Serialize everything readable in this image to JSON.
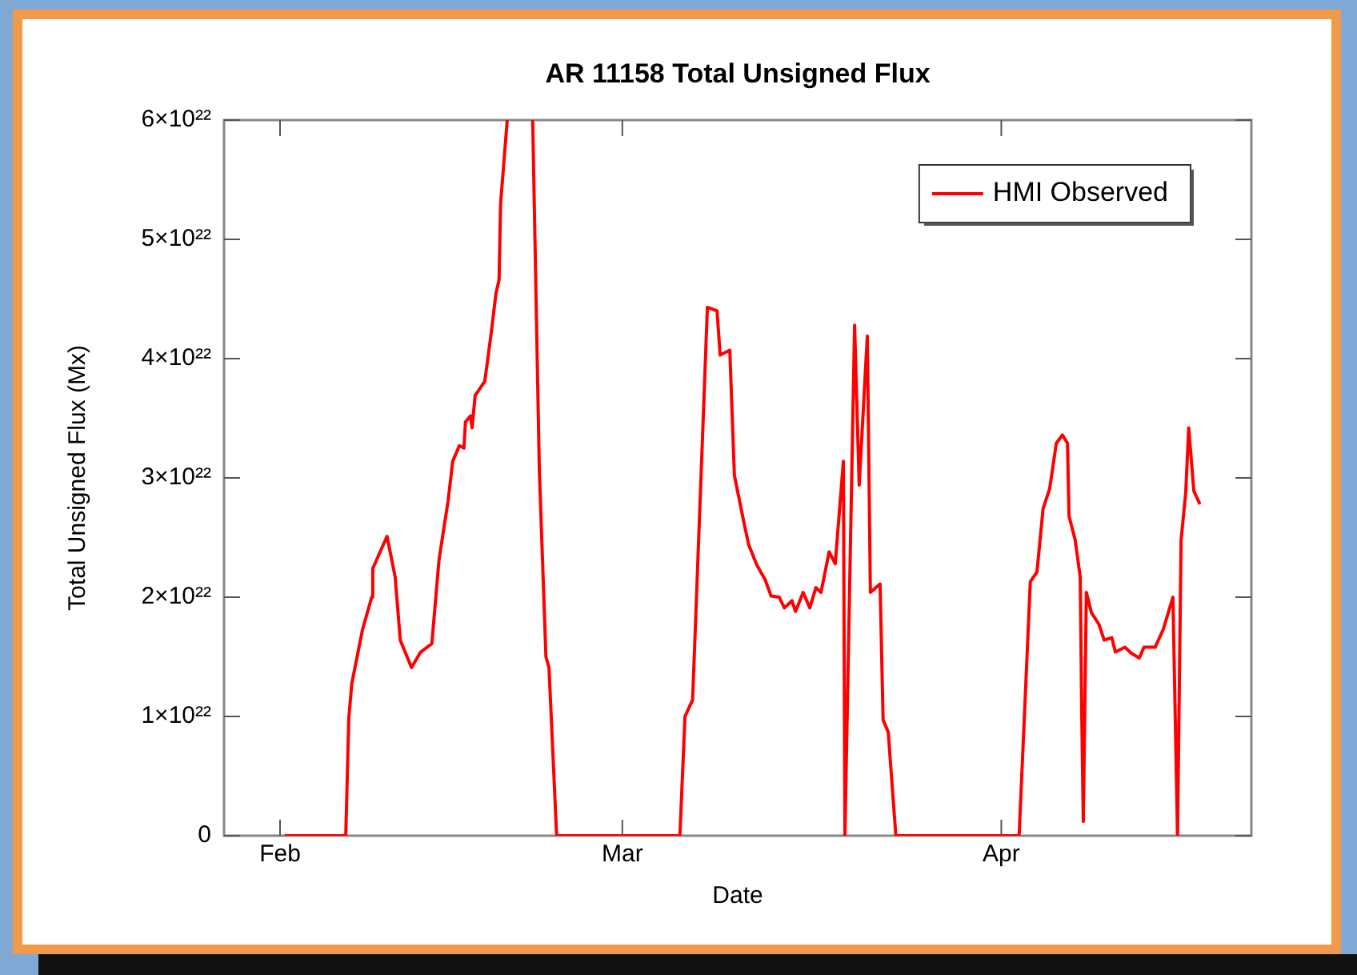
{
  "chart_data": {
    "type": "line",
    "title": "AR 11158 Total Unsigned Flux",
    "xlabel": "Date",
    "ylabel": "Total Unsigned Flux (Mx)",
    "xlim": [
      "--01-27T10:00",
      "--04-21T11:00"
    ],
    "xticks": [
      {
        "value": "--02-01",
        "label": "Feb"
      },
      {
        "value": "--03-01",
        "label": "Mar"
      },
      {
        "value": "--04-01",
        "label": "Apr"
      }
    ],
    "ylim": [
      0,
      6e+22
    ],
    "yticks": [
      0,
      {
        "value": 1e+22,
        "label": "1×10²²"
      },
      {
        "value": 2e+22,
        "label": "2×10²²"
      },
      {
        "value": 3e+22,
        "label": "3×10²²"
      },
      {
        "value": 4e+22,
        "label": "4×10²²"
      },
      {
        "value": 5e+22,
        "label": "5×10²²"
      },
      {
        "value": 6e+22,
        "label": "6×10²²"
      }
    ],
    "grid": false,
    "legend": "top right",
    "marker": "none",
    "line_style": "solid",
    "x": [
      "--02-01T09:00",
      "--02-05T18:00",
      "--02-06T09:00",
      "--02-06T15:00",
      "--02-06T21:00",
      "--02-07T18:00",
      "--02-08T12:00",
      "--02-08T14:00",
      "--02-09T18:00",
      "--02-10T10:00",
      "--02-10T20:00",
      "--02-11T18:00",
      "--02-12T12:00",
      "--02-13T10:00",
      "--02-14T00:00",
      "--02-14T18:00",
      "--02-15T03:00",
      "--02-15T16:00",
      "--02-16T01:00",
      "--02-16T04:00",
      "--02-16T14:00",
      "--02-16T17:00",
      "--02-16T23:00",
      "--02-17T18:00",
      "--02-18T07:00",
      "--02-18T16:00",
      "--02-18T22:00",
      "--02-19T01:00",
      "--02-19T14:00",
      "--02-20T15:00",
      "--02-21T16:00",
      "--02-22T05:00",
      "--02-22T18:00",
      "--02-23T00:00",
      "--02-23T15:00",
      "--03-05T17:00",
      "--03-06T03:00",
      "--03-06T18:00",
      "--03-07T23:00",
      "--03-08T18:00",
      "--03-09T00:00",
      "--03-09T19:00",
      "--03-10T04:00",
      "--03-10T23:00",
      "--03-11T08:00",
      "--03-12T00:00",
      "--03-12T16:00",
      "--03-13T04:00",
      "--03-13T20:00",
      "--03-14T06:00",
      "--03-14T21:00",
      "--03-15T04:00",
      "--03-15T19:00",
      "--03-16T08:00",
      "--03-16T20:00",
      "--03-17T06:00",
      "--03-17T22:00",
      "--03-18T10:00",
      "--03-19T02:00",
      "--03-19T05:00",
      "--03-20T00:00",
      "--03-20T09:00",
      "--03-21T01:00",
      "--03-21T07:00",
      "--03-22T02:00",
      "--03-22T08:00",
      "--03-22T18:00",
      "--03-23T09:00",
      "--04-02T11:00",
      "--04-03T09:00",
      "--04-03T22:00",
      "--04-04T10:00",
      "--04-04T23:00",
      "--04-05T12:00",
      "--04-06T00:00",
      "--04-06T10:00",
      "--04-06T13:00",
      "--04-07T01:00",
      "--04-07T11:00",
      "--04-07T14:00",
      "--04-07T17:00",
      "--04-07T23:00",
      "--04-08T09:00",
      "--04-09T00:00",
      "--04-09T10:00",
      "--04-10T01:00",
      "--04-10T08:00",
      "--04-11T03:00",
      "--04-11T15:00",
      "--04-12T07:00",
      "--04-12T16:00",
      "--04-13T14:00",
      "--04-14T06:00",
      "--04-15T01:00",
      "--04-15T10:00",
      "--04-15T17:00",
      "--04-16T02:00",
      "--04-16T08:00",
      "--04-16T18:00",
      "--04-17T06:00"
    ],
    "series": [
      {
        "name": "HMI Observed",
        "color": "#ff0000",
        "values": [
          0,
          0,
          0,
          9.9e+21,
          1.28e+22,
          1.73e+22,
          2e+22,
          2.24e+22,
          2.51e+22,
          2.17e+22,
          1.64e+22,
          1.41e+22,
          1.54e+22,
          1.61e+22,
          2.31e+22,
          2.81e+22,
          3.14e+22,
          3.27e+22,
          3.25e+22,
          3.47e+22,
          3.52e+22,
          3.42e+22,
          3.69e+22,
          3.81e+22,
          4.23e+22,
          4.55e+22,
          4.66e+22,
          5.3e+22,
          6e+22,
          null,
          6e+22,
          3.07e+22,
          1.5e+22,
          1.41e+22,
          0,
          0,
          1e+22,
          1.14e+22,
          4.43e+22,
          4.4e+22,
          4.03e+22,
          4.07e+22,
          3.02e+22,
          2.62e+22,
          2.44e+22,
          2.27e+22,
          2.15e+22,
          2.01e+22,
          2e+22,
          1.91e+22,
          1.97e+22,
          1.88e+22,
          2.04e+22,
          1.91e+22,
          2.08e+22,
          2.04e+22,
          2.38e+22,
          2.28e+22,
          3.14e+22,
          0,
          4.28e+22,
          2.94e+22,
          4.19e+22,
          2.04e+22,
          2.11e+22,
          9.7e+21,
          8.7e+21,
          0,
          0,
          2.13e+22,
          2.21e+22,
          2.74e+22,
          2.91e+22,
          3.29e+22,
          3.36e+22,
          3.29e+22,
          2.68e+22,
          2.48e+22,
          2.17e+22,
          1.01e+22,
          1.2e+21,
          2.04e+22,
          1.87e+22,
          1.77e+22,
          1.64e+22,
          1.66e+22,
          1.54e+22,
          1.58e+22,
          1.53e+22,
          1.49e+22,
          1.58e+22,
          1.58e+22,
          1.73e+22,
          2e+22,
          0,
          2.48e+22,
          2.87e+22,
          3.42e+22,
          2.89e+22,
          2.78e+22
        ]
      }
    ]
  }
}
